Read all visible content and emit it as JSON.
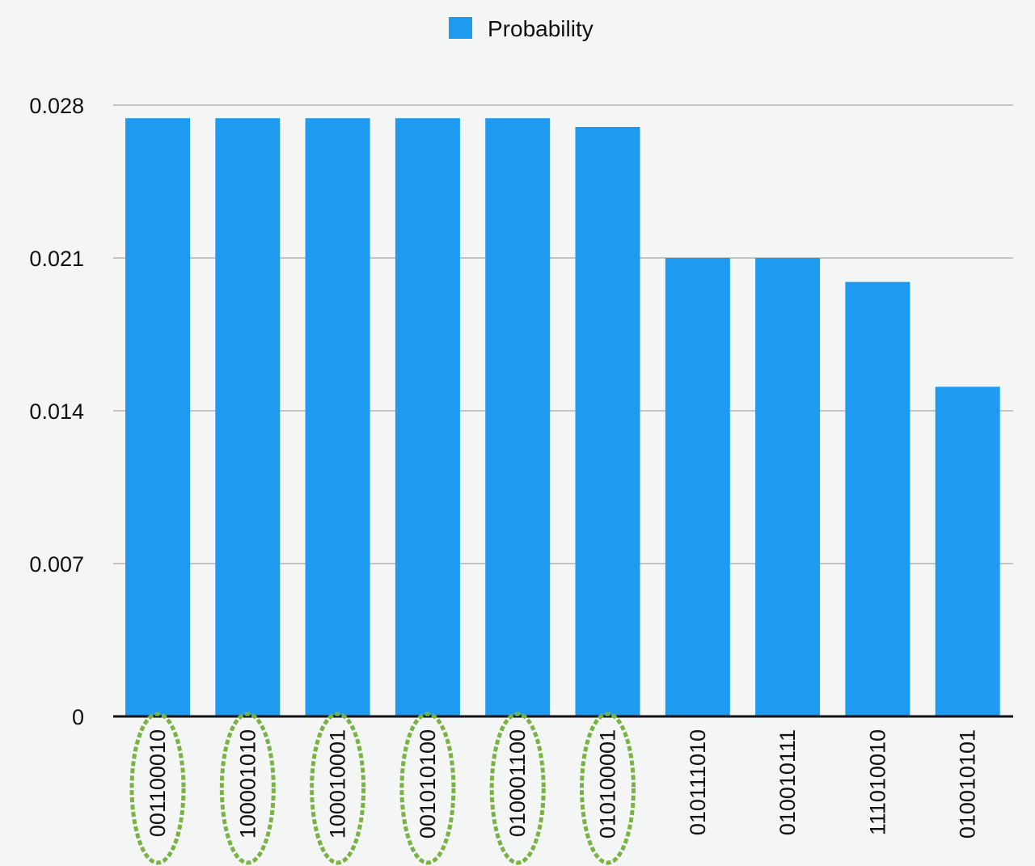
{
  "chart_data": {
    "type": "bar",
    "categories": [
      "001100010",
      "100001010",
      "100010001",
      "001010100",
      "010001100",
      "010100001",
      "010111010",
      "010010111",
      "111010010",
      "010010101"
    ],
    "series": [
      {
        "name": "Probability",
        "values": [
          0.0274,
          0.0274,
          0.0274,
          0.0274,
          0.0274,
          0.027,
          0.021,
          0.021,
          0.0199,
          0.0151
        ]
      }
    ],
    "yticks": [
      "0",
      "0.007",
      "0.014",
      "0.021",
      "0.028"
    ],
    "ylim": [
      0,
      0.028
    ],
    "grid": true,
    "legend_position": "top-center",
    "highlighted_categories": [
      "001100010",
      "100001010",
      "100010001",
      "001010100",
      "010001100",
      "010100001"
    ],
    "colors": {
      "bar": "#1e9bf0",
      "grid": "#c4c4c4",
      "axis": "#111111",
      "highlight": "#79b344",
      "background": "#f4f6f5"
    }
  }
}
